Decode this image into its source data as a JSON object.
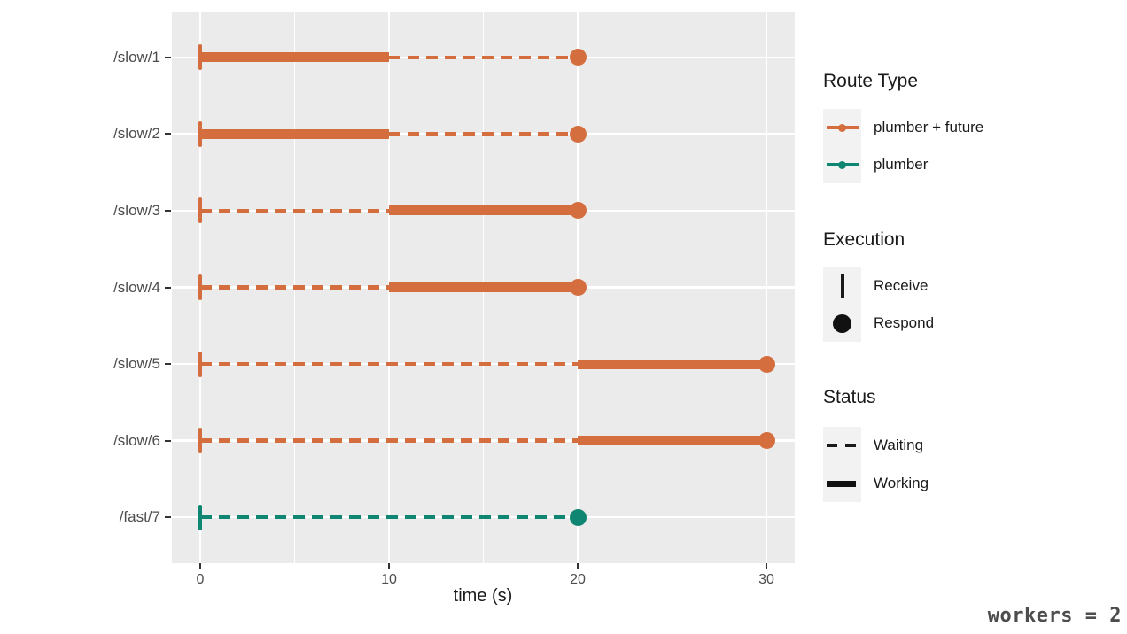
{
  "chart_data": {
    "type": "timeline",
    "title": "",
    "xlabel": "time (s)",
    "x": {
      "label": "time (s)",
      "ticks": [
        0,
        10,
        20,
        30
      ],
      "minor_ticks": [
        5,
        15,
        25
      ],
      "domain": [
        -1.5,
        31.5
      ]
    },
    "y": {
      "categories": [
        "/slow/1",
        "/slow/2",
        "/slow/3",
        "/slow/4",
        "/slow/5",
        "/slow/6",
        "/fast/7"
      ]
    },
    "rows": [
      {
        "route": "/slow/1",
        "route_type": "plumber + future",
        "receive": 0,
        "respond": 20,
        "segments": [
          {
            "status": "Working",
            "from": 0,
            "to": 10
          },
          {
            "status": "Waiting",
            "from": 10,
            "to": 20
          }
        ]
      },
      {
        "route": "/slow/2",
        "route_type": "plumber + future",
        "receive": 0,
        "respond": 20,
        "segments": [
          {
            "status": "Working",
            "from": 0,
            "to": 10
          },
          {
            "status": "Waiting",
            "from": 10,
            "to": 20
          }
        ]
      },
      {
        "route": "/slow/3",
        "route_type": "plumber + future",
        "receive": 0,
        "respond": 20,
        "segments": [
          {
            "status": "Waiting",
            "from": 0,
            "to": 10
          },
          {
            "status": "Working",
            "from": 10,
            "to": 20
          }
        ]
      },
      {
        "route": "/slow/4",
        "route_type": "plumber + future",
        "receive": 0,
        "respond": 20,
        "segments": [
          {
            "status": "Waiting",
            "from": 0,
            "to": 10
          },
          {
            "status": "Working",
            "from": 10,
            "to": 20
          }
        ]
      },
      {
        "route": "/slow/5",
        "route_type": "plumber + future",
        "receive": 0,
        "respond": 30,
        "segments": [
          {
            "status": "Waiting",
            "from": 0,
            "to": 20
          },
          {
            "status": "Working",
            "from": 20,
            "to": 30
          }
        ]
      },
      {
        "route": "/slow/6",
        "route_type": "plumber + future",
        "receive": 0,
        "respond": 30,
        "segments": [
          {
            "status": "Waiting",
            "from": 0,
            "to": 20
          },
          {
            "status": "Working",
            "from": 20,
            "to": 30
          }
        ]
      },
      {
        "route": "/fast/7",
        "route_type": "plumber",
        "receive": 0,
        "respond": 20,
        "segments": [
          {
            "status": "Waiting",
            "from": 0,
            "to": 20
          }
        ]
      }
    ],
    "legend": {
      "route_type": {
        "title": "Route Type",
        "entries": [
          {
            "label": "plumber + future",
            "glyph": "line-dot",
            "color": "#D56E3F"
          },
          {
            "label": "plumber",
            "glyph": "line-dot",
            "color": "#0F8671"
          }
        ]
      },
      "execution": {
        "title": "Execution",
        "entries": [
          {
            "label": "Receive",
            "glyph": "receive"
          },
          {
            "label": "Respond",
            "glyph": "respond"
          }
        ]
      },
      "status": {
        "title": "Status",
        "entries": [
          {
            "label": "Waiting",
            "glyph": "waiting"
          },
          {
            "label": "Working",
            "glyph": "working"
          }
        ]
      }
    },
    "annotation": "workers = 2",
    "colors": {
      "plumber_future": "#D56E3F",
      "plumber": "#0F8671",
      "panel_bg": "#EBEBEB",
      "grid": "#FFFFFF",
      "axis_text": "#4D4D4D",
      "tick_mark": "#333333",
      "legend_key_bg": "#F2F2F2",
      "annotation_text": "#4D4D4D"
    }
  }
}
